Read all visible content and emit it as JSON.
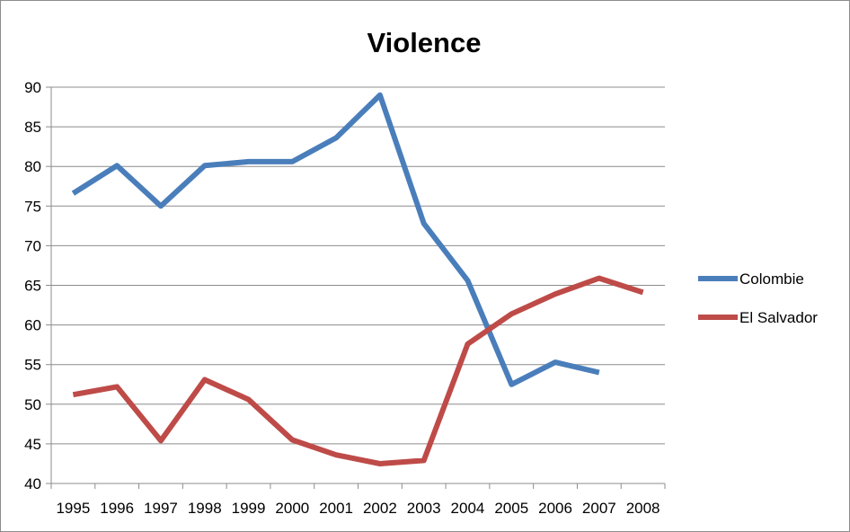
{
  "chart_data": {
    "type": "line",
    "title": "Violence",
    "xlabel": "",
    "ylabel": "",
    "categories": [
      "1995",
      "1996",
      "1997",
      "1998",
      "1999",
      "2000",
      "2001",
      "2002",
      "2003",
      "2004",
      "2005",
      "2006",
      "2007",
      "2008"
    ],
    "ylim": [
      40,
      90
    ],
    "yticks": [
      40,
      45,
      50,
      55,
      60,
      65,
      70,
      75,
      80,
      85,
      90
    ],
    "grid": true,
    "legend_position": "right",
    "series": [
      {
        "name": "Colombie",
        "color": "#4a7ebb",
        "values": [
          76.6,
          80.1,
          75.0,
          80.1,
          80.6,
          80.6,
          83.6,
          89.0,
          72.8,
          65.6,
          52.5,
          55.3,
          54.0,
          null
        ]
      },
      {
        "name": "El Salvador",
        "color": "#be4b48",
        "values": [
          51.2,
          52.2,
          45.4,
          53.1,
          50.6,
          45.5,
          43.6,
          42.5,
          42.9,
          57.6,
          61.4,
          63.9,
          65.9,
          64.1
        ]
      }
    ]
  }
}
